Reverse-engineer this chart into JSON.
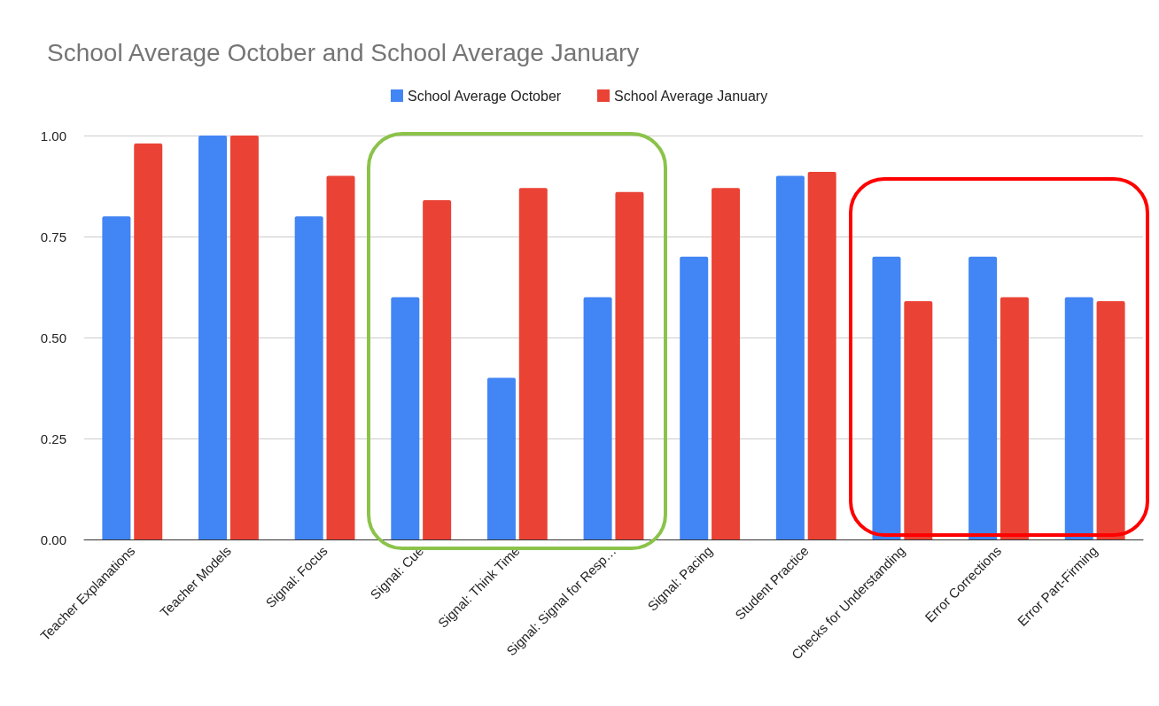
{
  "chart_data": {
    "type": "bar",
    "title": "School Average October and School Average January",
    "categories": [
      "Teacher Explanations",
      "Teacher Models",
      "Signal: Focus",
      "Signal: Cue",
      "Signal: Think Time",
      "Signal: Signal for Resp…",
      "Signal: Pacing",
      "Student Practice",
      "Checks for Understanding",
      "Error Corrections",
      "Error Part-Firming"
    ],
    "series": [
      {
        "name": "School Average October",
        "color": "#4285f4",
        "values": [
          0.8,
          1.0,
          0.8,
          0.6,
          0.4,
          0.6,
          0.7,
          0.9,
          0.7,
          0.7,
          0.6
        ]
      },
      {
        "name": "School Average January",
        "color": "#ea4335",
        "values": [
          0.98,
          1.0,
          0.9,
          0.84,
          0.87,
          0.86,
          0.87,
          0.91,
          0.59,
          0.6,
          0.59
        ]
      }
    ],
    "ylim": [
      0,
      1
    ],
    "yticks": [
      {
        "value": 0,
        "label": "0.00"
      },
      {
        "value": 0.25,
        "label": "0.25"
      },
      {
        "value": 0.5,
        "label": "0.50"
      },
      {
        "value": 0.75,
        "label": "0.75"
      },
      {
        "value": 1,
        "label": "1.00"
      }
    ],
    "grid": "y",
    "legend": "top"
  }
}
